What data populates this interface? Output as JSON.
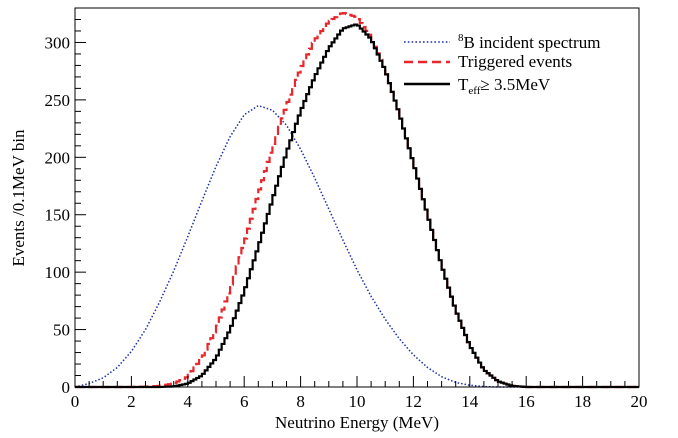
{
  "chart_data": {
    "type": "line",
    "xlabel": "Neutrino Energy (MeV)",
    "ylabel": "Events /0.1MeV bin",
    "xlim": [
      0,
      20
    ],
    "ylim": [
      0,
      330
    ],
    "x_ticks": [
      0,
      2,
      4,
      6,
      8,
      10,
      12,
      14,
      16,
      18,
      20
    ],
    "y_ticks": [
      0,
      50,
      100,
      150,
      200,
      250,
      300
    ],
    "grid": false,
    "legend": {
      "placement": "top-right",
      "entries": [
        {
          "series": "incident",
          "superscript": "8",
          "text": "B incident spectrum"
        },
        {
          "series": "triggered",
          "text": "Triggered events"
        },
        {
          "series": "teff",
          "main": "T",
          "subscript": "eff",
          "rest": "≥ 3.5MeV"
        }
      ]
    },
    "series": [
      {
        "name": "8B incident spectrum",
        "key": "incident",
        "style": "dotted",
        "color": "#1c2fa8",
        "points": [
          [
            0,
            0
          ],
          [
            0.5,
            3
          ],
          [
            1,
            8
          ],
          [
            1.5,
            17
          ],
          [
            2,
            31
          ],
          [
            2.5,
            50
          ],
          [
            3,
            74
          ],
          [
            3.5,
            101
          ],
          [
            4,
            131
          ],
          [
            4.5,
            162
          ],
          [
            5,
            192
          ],
          [
            5.5,
            218
          ],
          [
            6,
            237
          ],
          [
            6.5,
            245
          ],
          [
            7,
            241
          ],
          [
            7.5,
            228
          ],
          [
            8,
            207
          ],
          [
            8.5,
            182
          ],
          [
            9,
            155
          ],
          [
            9.5,
            128
          ],
          [
            10,
            102
          ],
          [
            10.5,
            79
          ],
          [
            11,
            59
          ],
          [
            11.5,
            42
          ],
          [
            12,
            28
          ],
          [
            12.5,
            17
          ],
          [
            13,
            9
          ],
          [
            13.5,
            4
          ],
          [
            14,
            1.5
          ],
          [
            14.5,
            0.4
          ],
          [
            15,
            0
          ],
          [
            20,
            0
          ]
        ]
      },
      {
        "name": "Triggered events",
        "key": "triggered",
        "style": "dashed-step",
        "color": "#e8262b",
        "points": [
          [
            0,
            0
          ],
          [
            2,
            0
          ],
          [
            2.5,
            0.3
          ],
          [
            3,
            1
          ],
          [
            3.5,
            3
          ],
          [
            4,
            9
          ],
          [
            4.5,
            25
          ],
          [
            5,
            50
          ],
          [
            5.5,
            85
          ],
          [
            6,
            125
          ],
          [
            6.5,
            168
          ],
          [
            7,
            208
          ],
          [
            7.5,
            245
          ],
          [
            8,
            277
          ],
          [
            8.5,
            302
          ],
          [
            9,
            318
          ],
          [
            9.5,
            326
          ],
          [
            10,
            322
          ],
          [
            10.5,
            305
          ],
          [
            11,
            276
          ],
          [
            11.5,
            238
          ],
          [
            12,
            195
          ],
          [
            12.5,
            150
          ],
          [
            13,
            106
          ],
          [
            13.5,
            67
          ],
          [
            14,
            36
          ],
          [
            14.5,
            15
          ],
          [
            15,
            5
          ],
          [
            15.5,
            1
          ],
          [
            16,
            0
          ],
          [
            20,
            0
          ]
        ]
      },
      {
        "name": "Teff ≥ 3.5MeV",
        "key": "teff",
        "style": "solid-step",
        "color": "#000000",
        "points": [
          [
            0,
            0
          ],
          [
            3,
            0
          ],
          [
            3.5,
            0.5
          ],
          [
            4,
            3
          ],
          [
            4.5,
            10
          ],
          [
            5,
            25
          ],
          [
            5.5,
            50
          ],
          [
            6,
            83
          ],
          [
            6.5,
            122
          ],
          [
            7,
            163
          ],
          [
            7.5,
            204
          ],
          [
            8,
            240
          ],
          [
            8.5,
            270
          ],
          [
            9,
            295
          ],
          [
            9.5,
            312
          ],
          [
            10,
            316
          ],
          [
            10.5,
            303
          ],
          [
            11,
            276
          ],
          [
            11.5,
            238
          ],
          [
            12,
            195
          ],
          [
            12.5,
            150
          ],
          [
            13,
            106
          ],
          [
            13.5,
            67
          ],
          [
            14,
            36
          ],
          [
            14.5,
            15
          ],
          [
            15,
            5
          ],
          [
            15.5,
            1
          ],
          [
            16,
            0
          ],
          [
            20,
            0
          ]
        ]
      }
    ]
  }
}
